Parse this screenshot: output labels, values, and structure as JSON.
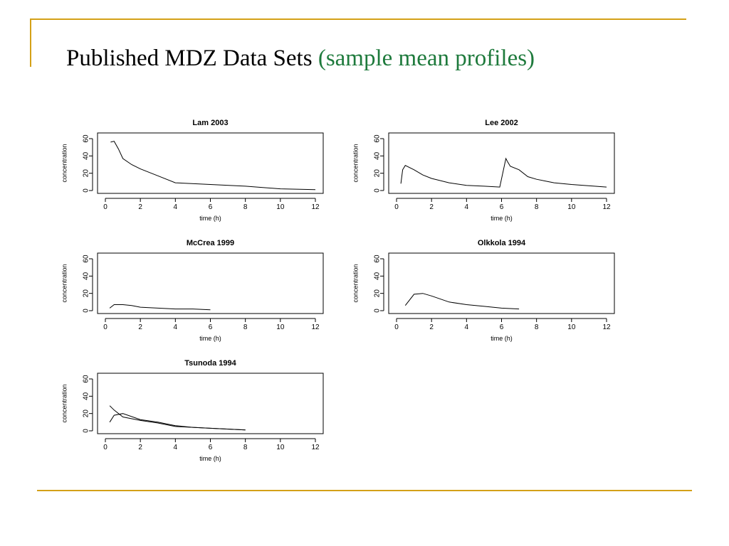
{
  "slide": {
    "title": "Published MDZ Data Sets",
    "subtitle": "(sample mean profiles)"
  },
  "colors": {
    "accent": "#D4A017",
    "subtitle": "#1E7A3C",
    "line": "#000000"
  },
  "chart_data": [
    {
      "type": "line",
      "title": "Lam 2003",
      "xlabel": "time (h)",
      "ylabel": "concentration",
      "xlim": [
        0,
        12
      ],
      "ylim": [
        0,
        60
      ],
      "xticks": [
        "0",
        "2",
        "4",
        "6",
        "8",
        "10",
        "12"
      ],
      "yticks": [
        "0",
        "20",
        "40",
        "60"
      ],
      "series": [
        {
          "x": [
            0.3,
            0.5,
            0.75,
            1,
            1.5,
            2,
            3,
            4,
            6,
            8,
            10,
            12
          ],
          "y": [
            56,
            57,
            48,
            37,
            30,
            25,
            17,
            9,
            7,
            5,
            2,
            1
          ]
        }
      ]
    },
    {
      "type": "line",
      "title": "Lee 2002",
      "xlabel": "time (h)",
      "ylabel": "concentration",
      "xlim": [
        0,
        12
      ],
      "ylim": [
        0,
        60
      ],
      "xticks": [
        "0",
        "2",
        "4",
        "6",
        "8",
        "10",
        "12"
      ],
      "yticks": [
        "0",
        "20",
        "40",
        "60"
      ],
      "series": [
        {
          "x": [
            0.25,
            0.35,
            0.5,
            1,
            1.5,
            2,
            3,
            4,
            5,
            5.9,
            6.25,
            6.35,
            6.5,
            7,
            7.5,
            8,
            9,
            10,
            12
          ],
          "y": [
            8,
            24,
            29,
            24,
            18,
            14,
            9,
            6,
            5,
            4,
            37,
            33,
            28,
            24,
            16,
            13,
            9,
            7,
            4
          ]
        }
      ]
    },
    {
      "type": "line",
      "title": "McCrea 1999",
      "xlabel": "time (h)",
      "ylabel": "concentration",
      "xlim": [
        0,
        12
      ],
      "ylim": [
        0,
        60
      ],
      "xticks": [
        "0",
        "2",
        "4",
        "6",
        "8",
        "10",
        "12"
      ],
      "yticks": [
        "0",
        "20",
        "40",
        "60"
      ],
      "series": [
        {
          "x": [
            0.25,
            0.5,
            1,
            1.5,
            2,
            3,
            4,
            5,
            6
          ],
          "y": [
            3,
            7,
            7,
            6,
            4,
            3,
            2,
            2,
            1
          ]
        }
      ]
    },
    {
      "type": "line",
      "title": "Olkkola 1994",
      "xlabel": "time (h)",
      "ylabel": "concentration",
      "xlim": [
        0,
        12
      ],
      "ylim": [
        0,
        60
      ],
      "xticks": [
        "0",
        "2",
        "4",
        "6",
        "8",
        "10",
        "12"
      ],
      "yticks": [
        "0",
        "20",
        "40",
        "60"
      ],
      "series": [
        {
          "x": [
            0.5,
            1,
            1.5,
            2,
            3,
            4,
            5,
            6,
            7
          ],
          "y": [
            6,
            19,
            20,
            17,
            10,
            7,
            5,
            3,
            2
          ]
        }
      ]
    },
    {
      "type": "line",
      "title": "Tsunoda 1994",
      "xlabel": "time (h)",
      "ylabel": "concentration",
      "xlim": [
        0,
        12
      ],
      "ylim": [
        0,
        60
      ],
      "xticks": [
        "0",
        "2",
        "4",
        "6",
        "8",
        "10",
        "12"
      ],
      "yticks": [
        "0",
        "20",
        "40",
        "60"
      ],
      "series": [
        {
          "x": [
            0.25,
            0.5,
            1,
            2,
            3,
            4,
            5,
            6,
            8
          ],
          "y": [
            29,
            24,
            16,
            12,
            9,
            5,
            4,
            3,
            1
          ]
        },
        {
          "x": [
            0.25,
            0.5,
            1,
            2,
            3,
            4,
            5,
            6,
            8
          ],
          "y": [
            10,
            18,
            20,
            13,
            10,
            6,
            4,
            3,
            1
          ]
        }
      ]
    }
  ]
}
